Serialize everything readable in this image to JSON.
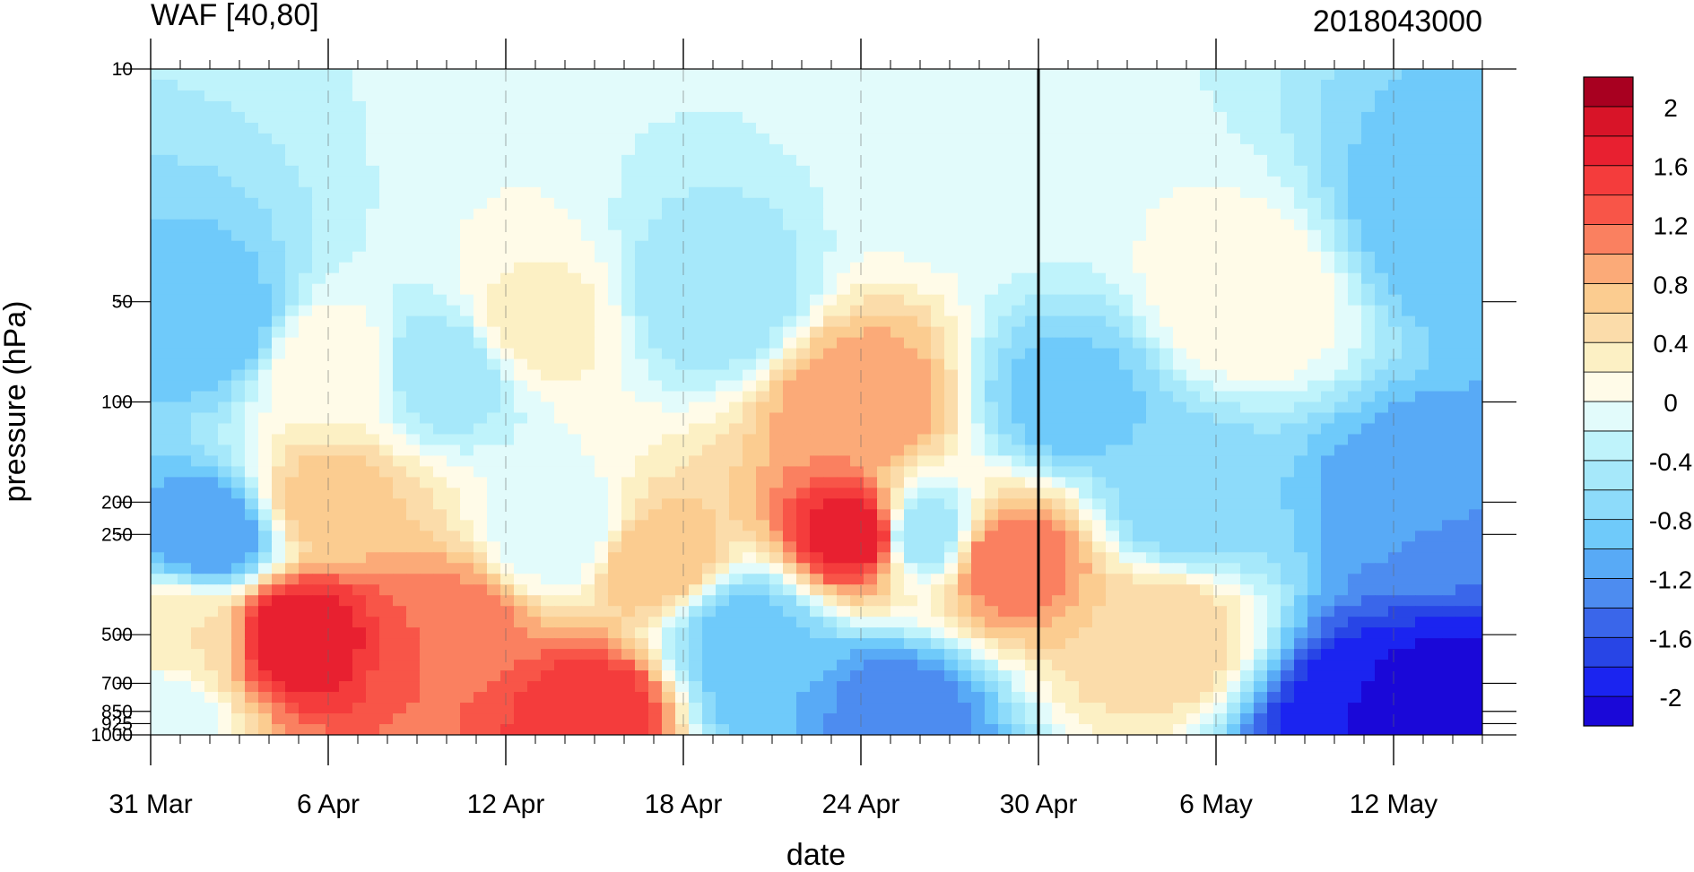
{
  "chart_data": {
    "type": "heatmap",
    "title": "WAF [40,80]",
    "subtitle": "2018043000",
    "xlabel": "date",
    "ylabel": "pressure (hPa)",
    "x_ticks": [
      "31 Mar",
      "6 Apr",
      "12 Apr",
      "18 Apr",
      "24 Apr",
      "30 Apr",
      "6 May",
      "12 May"
    ],
    "x_tick_days": [
      0,
      6,
      12,
      18,
      24,
      30,
      36,
      42
    ],
    "x_range_days": [
      0,
      45
    ],
    "y_ticks": [
      "10",
      "50",
      "100",
      "200",
      "250",
      "500",
      "700",
      "850",
      "925",
      "1000"
    ],
    "y_tick_values": [
      10,
      50,
      100,
      200,
      250,
      500,
      700,
      850,
      925,
      1000
    ],
    "y_scale": "log",
    "y_reversed": true,
    "y_range": [
      10,
      1000
    ],
    "marker_line_date": "30 Apr",
    "colorbar": {
      "position": "right",
      "levels": [
        -2.2,
        -2.0,
        -1.8,
        -1.6,
        -1.4,
        -1.2,
        -1.0,
        -0.8,
        -0.6,
        -0.4,
        -0.2,
        0.0,
        0.2,
        0.4,
        0.6,
        0.8,
        1.0,
        1.2,
        1.4,
        1.6,
        1.8,
        2.0,
        2.2
      ],
      "labels": [
        "-2",
        "-1.6",
        "-1.2",
        "-0.8",
        "-0.4",
        "0",
        "0.4",
        "0.8",
        "1.2",
        "1.6",
        "2"
      ],
      "label_values": [
        -2.0,
        -1.6,
        -1.2,
        -0.8,
        -0.4,
        0.0,
        0.4,
        0.8,
        1.2,
        1.6,
        2.0
      ],
      "colors": [
        "#1a08d8",
        "#1b24f0",
        "#2845e6",
        "#3a66ea",
        "#4d8cf0",
        "#58aaf6",
        "#6fcafa",
        "#8ddbfa",
        "#a6e8fa",
        "#bff3fb",
        "#e2fbfb",
        "#fffbe8",
        "#fcf0c4",
        "#fbdcaa",
        "#fbcc90",
        "#fbaa78",
        "#fa8060",
        "#f85548",
        "#f43c3c",
        "#e82030",
        "#d81428",
        "#a80020"
      ]
    },
    "fields": [
      {
        "day": 0,
        "p": 850,
        "v": -0.2
      },
      {
        "day": 1,
        "p": 500,
        "v": 0.4
      },
      {
        "day": 2,
        "p": 60,
        "v": -1.0
      },
      {
        "day": 2,
        "p": 250,
        "v": -1.2
      },
      {
        "day": 5,
        "p": 500,
        "v": 1.8
      },
      {
        "day": 6,
        "p": 200,
        "v": 0.7
      },
      {
        "day": 6,
        "p": 80,
        "v": 0.2
      },
      {
        "day": 10,
        "p": 500,
        "v": 1.2
      },
      {
        "day": 10,
        "p": 80,
        "v": -0.6
      },
      {
        "day": 13,
        "p": 60,
        "v": 0.3
      },
      {
        "day": 15,
        "p": 850,
        "v": 1.6
      },
      {
        "day": 17,
        "p": 300,
        "v": 0.8
      },
      {
        "day": 14,
        "p": 250,
        "v": -0.2
      },
      {
        "day": 20,
        "p": 500,
        "v": -0.9
      },
      {
        "day": 21,
        "p": 700,
        "v": -1.0
      },
      {
        "day": 24,
        "p": 100,
        "v": 1.0
      },
      {
        "day": 24,
        "p": 250,
        "v": 1.8
      },
      {
        "day": 25,
        "p": 850,
        "v": -1.4
      },
      {
        "day": 26,
        "p": 250,
        "v": -0.6
      },
      {
        "day": 29,
        "p": 300,
        "v": 1.2
      },
      {
        "day": 31,
        "p": 100,
        "v": -0.9
      },
      {
        "day": 34,
        "p": 500,
        "v": 0.6
      },
      {
        "day": 37,
        "p": 50,
        "v": 0.2
      },
      {
        "day": 35,
        "p": 200,
        "v": -0.8
      },
      {
        "day": 41,
        "p": 900,
        "v": -2.0
      },
      {
        "day": 44,
        "p": 900,
        "v": -2.2
      },
      {
        "day": 43,
        "p": 200,
        "v": -1.2
      },
      {
        "day": 44,
        "p": 30,
        "v": -1.0
      },
      {
        "day": 19,
        "p": 50,
        "v": -0.6
      },
      {
        "day": 28,
        "p": 20,
        "v": -0.1
      }
    ]
  }
}
